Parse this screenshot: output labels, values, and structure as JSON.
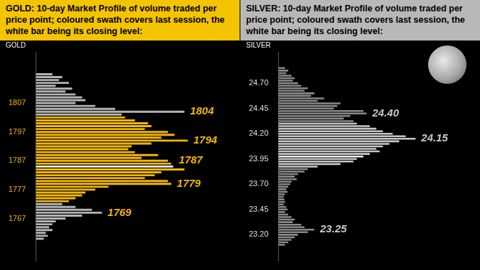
{
  "chart_data": [
    {
      "type": "bar",
      "orientation": "horizontal",
      "title": "GOLD:  10-day Market Profile of volume traded per price point; coloured swath covers last session, the white bar being its closing level:",
      "y_label": "GOLD",
      "color": "#f2b705",
      "y": [
        1817,
        1816,
        1815,
        1814,
        1813,
        1812,
        1811,
        1810,
        1809,
        1808,
        1807,
        1806,
        1805,
        1804,
        1803,
        1802,
        1801,
        1800,
        1799,
        1798,
        1797,
        1796,
        1795,
        1794,
        1793,
        1792,
        1791,
        1790,
        1789,
        1788,
        1787,
        1786,
        1785,
        1784,
        1783,
        1782,
        1781,
        1780,
        1779,
        1778,
        1777,
        1776,
        1775,
        1774,
        1773,
        1772,
        1771,
        1770,
        1769,
        1768,
        1767,
        1766,
        1765,
        1764,
        1763,
        1762,
        1761,
        1760
      ],
      "values": [
        25,
        40,
        35,
        50,
        30,
        55,
        45,
        60,
        70,
        75,
        60,
        90,
        120,
        225,
        130,
        135,
        150,
        170,
        175,
        165,
        200,
        210,
        190,
        230,
        175,
        145,
        140,
        150,
        185,
        160,
        200,
        205,
        208,
        225,
        190,
        180,
        165,
        200,
        205,
        110,
        90,
        75,
        70,
        60,
        50,
        40,
        60,
        85,
        100,
        70,
        45,
        30,
        25,
        20,
        25,
        15,
        18,
        12
      ],
      "colors": [
        "#b4b4b4",
        "#b4b4b4",
        "#b4b4b4",
        "#b4b4b4",
        "#b4b4b4",
        "#b4b4b4",
        "#b4b4b4",
        "#b4b4b4",
        "#b4b4b4",
        "#b4b4b4",
        "#b4b4b4",
        "#b4b4b4",
        "#b4b4b4",
        "#b4b4b4",
        "#b4b4b4",
        "#f2b705",
        "#f2b705",
        "#f2b705",
        "#f2b705",
        "#f2b705",
        "#f2b705",
        "#f2b705",
        "#f2b705",
        "#f2b705",
        "#f2b705",
        "#f2b705",
        "#f2b705",
        "#f2b705",
        "#f2b705",
        "#f2b705",
        "#f2b705",
        "#f2b705",
        "#ffffff",
        "#f2b705",
        "#f2b705",
        "#f2b705",
        "#f2b705",
        "#f2b705",
        "#f2b705",
        "#f2b705",
        "#f2b705",
        "#f2b705",
        "#f2b705",
        "#f2b705",
        "#f2b705",
        "#b4b4b4",
        "#b4b4b4",
        "#b4b4b4",
        "#b4b4b4",
        "#b4b4b4",
        "#b4b4b4",
        "#b4b4b4",
        "#b4b4b4",
        "#b4b4b4",
        "#b4b4b4",
        "#b4b4b4",
        "#b4b4b4",
        "#b4b4b4"
      ],
      "xlim": [
        0,
        300
      ],
      "ylim": [
        1759.5,
        1817.5
      ],
      "yticks": [
        1767,
        1777,
        1787,
        1797,
        1807
      ],
      "annotations": [
        {
          "y": 1804,
          "text": "1804"
        },
        {
          "y": 1794,
          "text": "1794"
        },
        {
          "y": 1787,
          "text": "1787"
        },
        {
          "y": 1779,
          "text": "1779"
        },
        {
          "y": 1769,
          "text": "1769"
        }
      ],
      "grid": false,
      "tick_labels": "y"
    },
    {
      "type": "bar",
      "orientation": "horizontal",
      "title": "SILVER:  10-day Market Profile of volume traded per price point; coloured swath covers last session, the white bar being its closing level:",
      "y_label": "SILVER",
      "color": "#c8c8c8",
      "y": [
        24.85,
        24.825,
        24.8,
        24.775,
        24.75,
        24.725,
        24.7,
        24.675,
        24.65,
        24.625,
        24.6,
        24.575,
        24.55,
        24.525,
        24.5,
        24.475,
        24.45,
        24.425,
        24.4,
        24.375,
        24.35,
        24.325,
        24.3,
        24.275,
        24.25,
        24.225,
        24.2,
        24.175,
        24.15,
        24.125,
        24.1,
        24.075,
        24.05,
        24.025,
        24,
        23.975,
        23.95,
        23.925,
        23.9,
        23.875,
        23.85,
        23.825,
        23.8,
        23.775,
        23.75,
        23.725,
        23.7,
        23.675,
        23.65,
        23.625,
        23.6,
        23.575,
        23.55,
        23.525,
        23.5,
        23.475,
        23.45,
        23.425,
        23.4,
        23.375,
        23.35,
        23.325,
        23.3,
        23.275,
        23.25,
        23.225,
        23.2,
        23.175,
        23.15,
        23.125,
        23.1
      ],
      "values": [
        10,
        15,
        12,
        20,
        25,
        22,
        30,
        35,
        45,
        40,
        55,
        50,
        70,
        60,
        95,
        90,
        85,
        130,
        135,
        110,
        100,
        115,
        120,
        140,
        150,
        160,
        175,
        195,
        210,
        185,
        170,
        160,
        150,
        155,
        140,
        130,
        120,
        115,
        95,
        60,
        45,
        40,
        30,
        25,
        28,
        20,
        18,
        15,
        12,
        14,
        10,
        8,
        9,
        10,
        8,
        12,
        14,
        10,
        15,
        20,
        25,
        22,
        35,
        40,
        55,
        45,
        30,
        25,
        20,
        15,
        10
      ],
      "colors": [
        "#8a8a8a",
        "#8a8a8a",
        "#8a8a8a",
        "#8a8a8a",
        "#8a8a8a",
        "#8a8a8a",
        "#8a8a8a",
        "#8a8a8a",
        "#8a8a8a",
        "#8a8a8a",
        "#8a8a8a",
        "#8a8a8a",
        "#8a8a8a",
        "#8a8a8a",
        "#8a8a8a",
        "#8a8a8a",
        "#8a8a8a",
        "#8a8a8a",
        "#8a8a8a",
        "#8a8a8a",
        "#8a8a8a",
        "#8a8a8a",
        "#c8c8c8",
        "#c8c8c8",
        "#c8c8c8",
        "#c8c8c8",
        "#c8c8c8",
        "#c8c8c8",
        "#c8c8c8",
        "#c8c8c8",
        "#c8c8c8",
        "#c8c8c8",
        "#c8c8c8",
        "#c8c8c8",
        "#c8c8c8",
        "#ffffff",
        "#c8c8c8",
        "#c8c8c8",
        "#c8c8c8",
        "#c8c8c8",
        "#8a8a8a",
        "#8a8a8a",
        "#8a8a8a",
        "#8a8a8a",
        "#8a8a8a",
        "#8a8a8a",
        "#8a8a8a",
        "#8a8a8a",
        "#8a8a8a",
        "#8a8a8a",
        "#8a8a8a",
        "#8a8a8a",
        "#8a8a8a",
        "#8a8a8a",
        "#8a8a8a",
        "#8a8a8a",
        "#8a8a8a",
        "#8a8a8a",
        "#8a8a8a",
        "#8a8a8a",
        "#8a8a8a",
        "#8a8a8a",
        "#8a8a8a",
        "#8a8a8a",
        "#8a8a8a",
        "#8a8a8a",
        "#8a8a8a",
        "#8a8a8a",
        "#8a8a8a",
        "#8a8a8a",
        "#8a8a8a"
      ],
      "xlim": [
        0,
        300
      ],
      "ylim": [
        23.0875,
        24.8625
      ],
      "yticks": [
        {
          "value": 23.2,
          "label": "23.20"
        },
        {
          "value": 23.45,
          "label": "23.45"
        },
        {
          "value": 23.7,
          "label": "23.70"
        },
        {
          "value": 23.95,
          "label": "23.95"
        },
        {
          "value": 24.2,
          "label": "24.20"
        },
        {
          "value": 24.45,
          "label": "24.45"
        },
        {
          "value": 24.7,
          "label": "24.70"
        }
      ],
      "annotations": [
        {
          "y": 24.4,
          "text": "24.40"
        },
        {
          "y": 24.15,
          "text": "24.15"
        },
        {
          "y": 23.25,
          "text": "23.25"
        }
      ],
      "grid": false,
      "tick_labels": "y"
    }
  ]
}
